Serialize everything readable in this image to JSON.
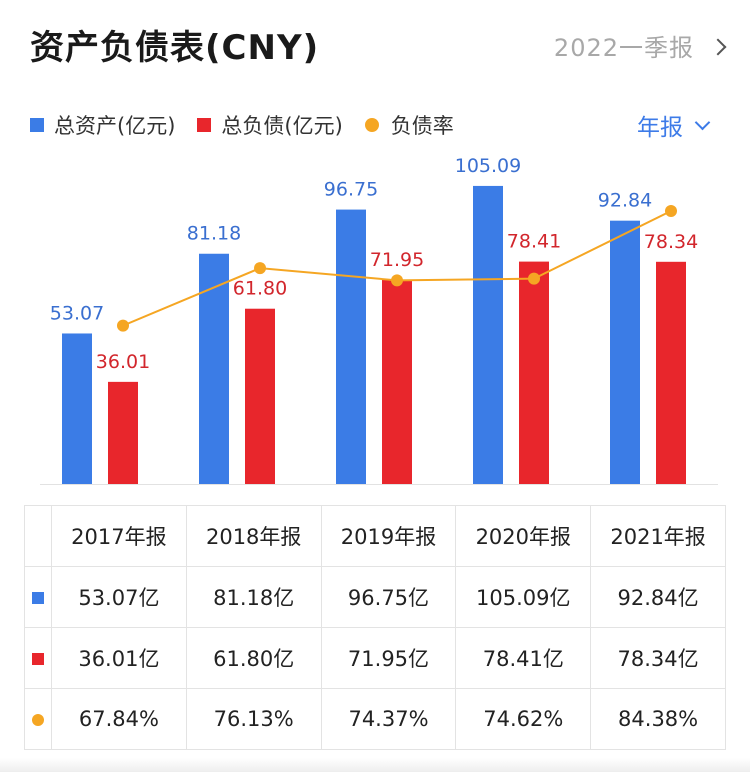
{
  "header": {
    "title": "资产负债表(CNY)",
    "period_label": "2022一季报"
  },
  "legend": {
    "assets_label": "总资产(亿元)",
    "liabilities_label": "总负债(亿元)",
    "ratio_label": "负债率"
  },
  "report_select": {
    "label": "年报"
  },
  "colors": {
    "assets": "#3b7ce6",
    "liabilities": "#e8262c",
    "ratio": "#f5a623",
    "label_assets": "#3a6fd0",
    "label_liabilities": "#d2262c"
  },
  "chart_data": {
    "type": "bar",
    "categories": [
      "2017年报",
      "2018年报",
      "2019年报",
      "2020年报",
      "2021年报"
    ],
    "series": [
      {
        "name": "总资产(亿元)",
        "kind": "bar",
        "values": [
          53.07,
          81.18,
          96.75,
          105.09,
          92.84
        ]
      },
      {
        "name": "总负债(亿元)",
        "kind": "bar",
        "values": [
          36.01,
          61.8,
          71.95,
          78.41,
          78.34
        ]
      },
      {
        "name": "负债率",
        "kind": "line",
        "unit": "%",
        "values": [
          67.84,
          76.13,
          74.37,
          74.62,
          84.38
        ]
      }
    ],
    "value_labels": {
      "assets": [
        "53.07",
        "81.18",
        "96.75",
        "105.09",
        "92.84"
      ],
      "liabilities": [
        "36.01",
        "61.80",
        "71.95",
        "78.41",
        "78.34"
      ]
    },
    "ylim": [
      0,
      110
    ],
    "ratio_ylim": [
      45,
      90
    ],
    "title": "资产负债表(CNY)",
    "legend_position": "top-left"
  },
  "table": {
    "headers": [
      "2017年报",
      "2018年报",
      "2019年报",
      "2020年报",
      "2021年报"
    ],
    "rows": [
      {
        "marker": "assets",
        "cells": [
          "53.07亿",
          "81.18亿",
          "96.75亿",
          "105.09亿",
          "92.84亿"
        ]
      },
      {
        "marker": "liabilities",
        "cells": [
          "36.01亿",
          "61.80亿",
          "71.95亿",
          "78.41亿",
          "78.34亿"
        ]
      },
      {
        "marker": "ratio",
        "cells": [
          "67.84%",
          "76.13%",
          "74.37%",
          "74.62%",
          "84.38%"
        ]
      }
    ]
  }
}
